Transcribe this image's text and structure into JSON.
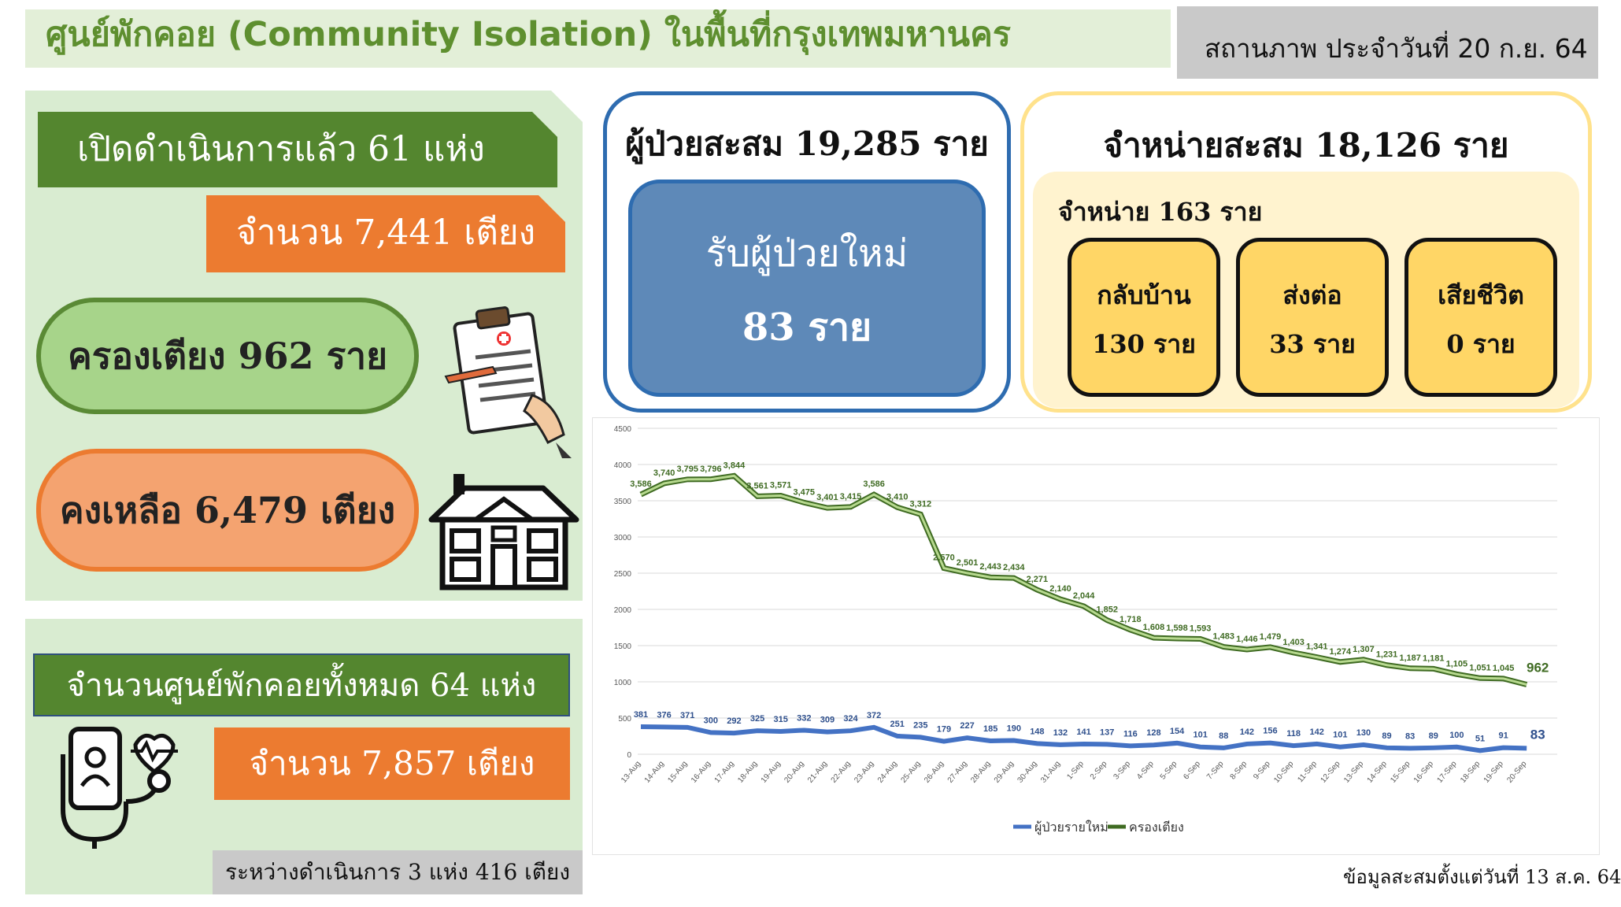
{
  "header": {
    "title": "ศูนย์พักคอย (Community Isolation) ในพื้นที่กรุงเทพมหานคร",
    "status": "สถานภาพ ประจำวันที่ 20 ก.ย. 64"
  },
  "left": {
    "open_label": "เปิดดำเนินการแล้ว 61 แห่ง",
    "beds_label": "จำนวน 7,441 เตียง",
    "occupied_label": "ครองเตียง 962 ราย",
    "remaining_label": "คงเหลือ 6,479 เตียง",
    "total_centers_label": "จำนวนศูนย์พักคอยทั้งหมด 64 แห่ง",
    "total_beds_label": "จำนวน 7,857 เตียง",
    "ongoing_label": "ระหว่างดำเนินการ 3 แห่ง 416 เตียง",
    "icons": [
      "clipboard-icon",
      "house-icon",
      "phone-heart-stethoscope-icon"
    ]
  },
  "patients": {
    "cumulative_label": "ผู้ป่วยสะสม 19,285 ราย",
    "new_label": "รับผู้ป่วยใหม่",
    "new_count": "83 ราย"
  },
  "discharge": {
    "cumulative_label": "จำหน่ายสะสม 18,126 ราย",
    "today_label": "จำหน่าย 163 ราย",
    "cards": [
      {
        "label": "กลับบ้าน",
        "count": "130 ราย"
      },
      {
        "label": "ส่งต่อ",
        "count": "33 ราย"
      },
      {
        "label": "เสียชีวิต",
        "count": "0 ราย"
      }
    ]
  },
  "footnote": "ข้อมูลสะสมตั้งแต่วันที่ 13 ส.ค. 64",
  "colors": {
    "green_dark": "#54862f",
    "green_light": "#a7d48a",
    "orange": "#ec7b30",
    "blue": "#4472c4",
    "line_green": "#70a33c"
  },
  "chart_data": {
    "type": "line",
    "ylim": [
      0,
      4500
    ],
    "yticks": [
      0,
      500,
      1000,
      1500,
      2000,
      2500,
      3000,
      3500,
      4000,
      4500
    ],
    "grid": true,
    "legend_position": "bottom",
    "categories": [
      "13-Aug",
      "14-Aug",
      "15-Aug",
      "16-Aug",
      "17-Aug",
      "18-Aug",
      "19-Aug",
      "20-Aug",
      "21-Aug",
      "22-Aug",
      "23-Aug",
      "24-Aug",
      "25-Aug",
      "26-Aug",
      "27-Aug",
      "28-Aug",
      "29-Aug",
      "30-Aug",
      "31-Aug",
      "1-Sep",
      "2-Sep",
      "3-Sep",
      "4-Sep",
      "5-Sep",
      "6-Sep",
      "7-Sep",
      "8-Sep",
      "9-Sep",
      "10-Sep",
      "11-Sep",
      "12-Sep",
      "13-Sep",
      "14-Sep",
      "15-Sep",
      "16-Sep",
      "17-Sep",
      "18-Sep",
      "19-Sep",
      "20-Sep"
    ],
    "series": [
      {
        "name": "ผู้ป่วยรายใหม่",
        "color": "#4472c4",
        "values": [
          381,
          376,
          371,
          300,
          292,
          325,
          315,
          332,
          309,
          324,
          372,
          251,
          235,
          179,
          227,
          185,
          190,
          148,
          132,
          141,
          137,
          116,
          128,
          154,
          101,
          88,
          142,
          156,
          118,
          142,
          101,
          130,
          89,
          83,
          89,
          100,
          51,
          91,
          83
        ],
        "labels": [
          "381",
          "376",
          "371",
          "300",
          "292",
          "325",
          "315",
          "332",
          "309",
          "324",
          "372",
          "251",
          "235",
          "179",
          "227",
          "185",
          "190",
          "148",
          "132",
          "141",
          "137",
          "116",
          "128",
          "154",
          "101",
          "88",
          "142",
          "156",
          "118",
          "142",
          "101",
          "130",
          "89",
          "83",
          "89",
          "100",
          "51",
          "91",
          "83"
        ]
      },
      {
        "name": "ครองเตียง",
        "color": "#70a33c",
        "values": [
          3586,
          3740,
          3795,
          3796,
          3844,
          3561,
          3571,
          3475,
          3401,
          3415,
          3586,
          3410,
          3312,
          2570,
          2501,
          2443,
          2434,
          2271,
          2140,
          2044,
          1852,
          1718,
          1608,
          1598,
          1593,
          1483,
          1446,
          1479,
          1403,
          1341,
          1274,
          1307,
          1231,
          1187,
          1181,
          1105,
          1051,
          1045,
          962
        ],
        "labels": [
          "3,586",
          "3,740",
          "3,795",
          "3,796",
          "3,844",
          "3,561",
          "3,571",
          "3,475",
          "3,401",
          "3,415",
          "3,586",
          "3,410",
          "3,312",
          "2,570",
          "2,501",
          "2,443",
          "2,434",
          "2,271",
          "2,140",
          "2,044",
          "1,852",
          "1,718",
          "1,608",
          "1,598",
          "1,593",
          "1,483",
          "1,446",
          "1,479",
          "1,403",
          "1,341",
          "1,274",
          "1,307",
          "1,231",
          "1,187",
          "1,181",
          "1,105",
          "1,051",
          "1,045",
          "962"
        ]
      }
    ]
  }
}
